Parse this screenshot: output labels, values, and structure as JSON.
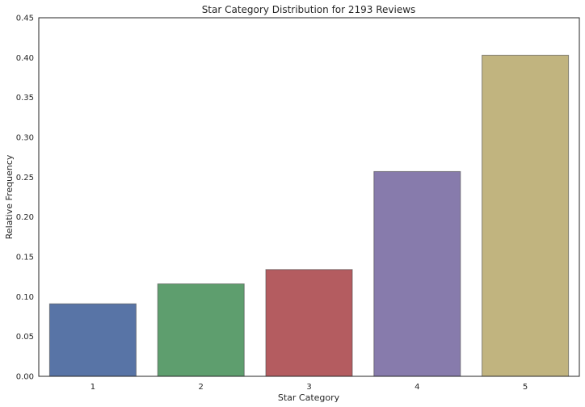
{
  "chart_data": {
    "type": "bar",
    "title": "Star Category Distribution for 2193 Reviews",
    "xlabel": "Star Category",
    "ylabel": "Relative Frequency",
    "categories": [
      "1",
      "2",
      "3",
      "4",
      "5"
    ],
    "values": [
      0.091,
      0.116,
      0.134,
      0.257,
      0.403
    ],
    "colors": [
      "#5874a6",
      "#5e9e6e",
      "#b45c60",
      "#877bac",
      "#c1b47f"
    ],
    "ylim": [
      0,
      0.45
    ],
    "yticks": [
      "0.00",
      "0.05",
      "0.10",
      "0.15",
      "0.20",
      "0.25",
      "0.30",
      "0.35",
      "0.40",
      "0.45"
    ],
    "grid": false,
    "legend": "none"
  }
}
